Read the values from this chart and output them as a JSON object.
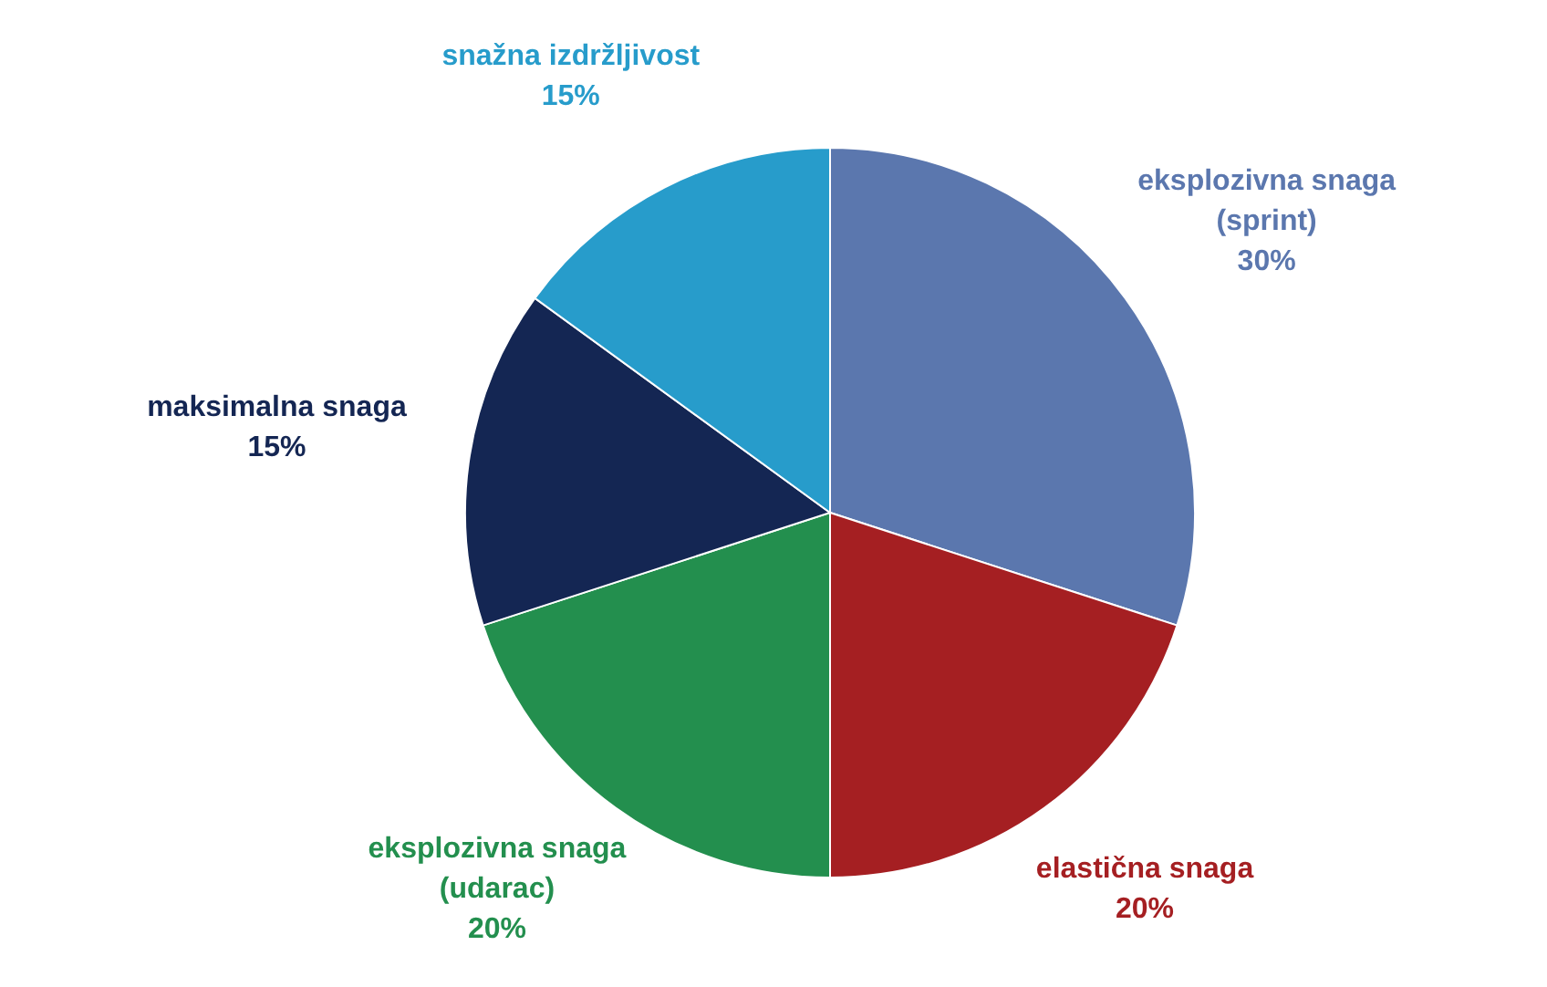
{
  "chart_data": {
    "type": "pie",
    "categories": [
      "eksplozivna snaga (sprint)",
      "elastična snaga",
      "eksplozivna snaga (udarac)",
      "maksimalna snaga",
      "snažna izdržljivost"
    ],
    "values": [
      30,
      20,
      20,
      15,
      15
    ],
    "value_labels": [
      "30%",
      "20%",
      "20%",
      "15%",
      "15%"
    ],
    "colors": [
      "#5b77ae",
      "#a51f22",
      "#238f4e",
      "#142653",
      "#279ccb"
    ]
  }
}
